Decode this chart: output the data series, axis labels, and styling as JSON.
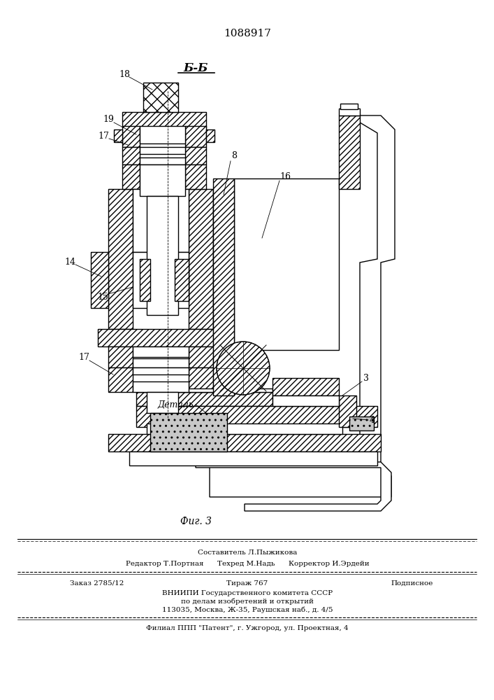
{
  "patent_number": "1088917",
  "section_label": "Б-Б",
  "fig_label": "Фиг. 3",
  "detail_label": "Деталь",
  "bg_color": "#ffffff",
  "line_color": "#000000"
}
